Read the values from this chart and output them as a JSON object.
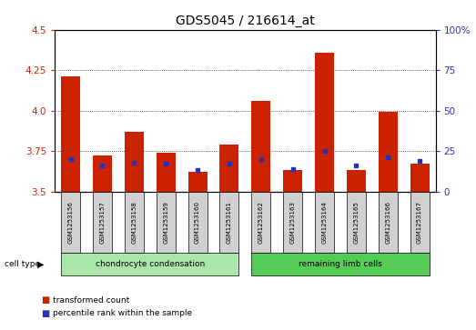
{
  "title": "GDS5045 / 216614_at",
  "samples": [
    "GSM1253156",
    "GSM1253157",
    "GSM1253158",
    "GSM1253159",
    "GSM1253160",
    "GSM1253161",
    "GSM1253162",
    "GSM1253163",
    "GSM1253164",
    "GSM1253165",
    "GSM1253166",
    "GSM1253167"
  ],
  "red_values": [
    4.21,
    3.72,
    3.87,
    3.74,
    3.62,
    3.79,
    4.06,
    3.63,
    4.36,
    3.63,
    3.99,
    3.67
  ],
  "blue_values": [
    20,
    16,
    18,
    17,
    13,
    17,
    20,
    14,
    25,
    16,
    21,
    19
  ],
  "y_min": 3.5,
  "y_max": 4.5,
  "y_ticks": [
    3.5,
    3.75,
    4.0,
    4.25,
    4.5
  ],
  "y2_tick_labels": [
    "0",
    "25",
    "50",
    "75",
    "100%"
  ],
  "y2_tick_vals": [
    0,
    25,
    50,
    75,
    100
  ],
  "group1_label": "chondrocyte condensation",
  "group2_label": "remaining limb cells",
  "group1_indices": [
    0,
    1,
    2,
    3,
    4,
    5
  ],
  "group2_indices": [
    6,
    7,
    8,
    9,
    10,
    11
  ],
  "cell_type_label": "cell type",
  "legend1": "transformed count",
  "legend2": "percentile rank within the sample",
  "bar_color": "#cc2200",
  "dot_color": "#2233bb",
  "group1_bg": "#aae6aa",
  "group2_bg": "#55cc55",
  "sample_bg": "#d0d0d0",
  "plot_bg": "#ffffff",
  "title_fontsize": 10,
  "tick_fontsize": 7.5,
  "label_fontsize": 7
}
